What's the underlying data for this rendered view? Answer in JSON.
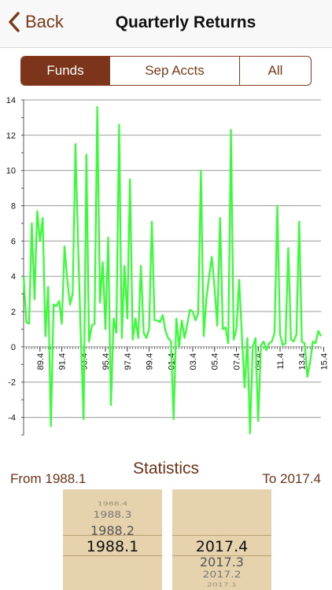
{
  "nav": {
    "back_label": "Back",
    "title": "Quarterly Returns"
  },
  "segments": [
    "Funds",
    "Sep Accts",
    "All"
  ],
  "statistics": {
    "title": "Statistics",
    "from_label": "From 1988.1",
    "to_label": "To 2017.4"
  },
  "picker_from": {
    "items": [
      "1988.4",
      "1988.3",
      "1988.2",
      "1988.1"
    ],
    "selected": "1988.1"
  },
  "picker_to": {
    "items": [
      "2017.4",
      "2017.3",
      "2017.2",
      "2017.1"
    ],
    "selected": "2017.4"
  },
  "chart_data": {
    "type": "line",
    "color": "#33ff33",
    "ylim": [
      -5,
      14
    ],
    "y_ticks": [
      14,
      12,
      10,
      8,
      6,
      4,
      2,
      0,
      -2,
      -4
    ],
    "x_ticks": [
      "89.4",
      "91.4",
      "93.4",
      "95.4",
      "97.4",
      "99.4",
      "01.4",
      "03.4",
      "05.4",
      "07.4",
      "09.4",
      "11.4",
      "13.4",
      "15.4"
    ],
    "values": [
      4.0,
      1.4,
      1.3,
      7.0,
      2.7,
      7.7,
      6.0,
      7.3,
      0.6,
      3.4,
      -4.5,
      2.4,
      2.3,
      2.6,
      1.3,
      5.7,
      3.8,
      2.4,
      3.0,
      11.5,
      5.6,
      0.5,
      -4.1,
      10.9,
      0.3,
      1.2,
      1.3,
      13.6,
      2.5,
      4.8,
      1.0,
      6.2,
      -3.3,
      1.6,
      0.8,
      12.6,
      0.5,
      4.6,
      1.6,
      9.5,
      0.4,
      1.6,
      0.5,
      4.6,
      0.8,
      0.5,
      1.0,
      7.1,
      1.5,
      1.5,
      1.4,
      1.8,
      0.9,
      0.5,
      0.3,
      -4.1,
      1.6,
      0.0,
      1.5,
      0.5,
      1.3,
      2.1,
      2.0,
      1.5,
      1.9,
      10.0,
      0.6,
      2.7,
      4.0,
      5.1,
      3.3,
      1.2,
      7.3,
      1.0,
      1.1,
      0.2,
      12.3,
      0.4,
      1.0,
      3.8,
      0.7,
      -2.3,
      0.5,
      -4.9,
      0.0,
      0.5,
      -4.2,
      0.1,
      0.3,
      -0.2,
      0.2,
      0.3,
      0.8,
      8.0,
      0.7,
      0.1,
      0.2,
      5.6,
      0.4,
      0.3,
      0.7,
      7.1,
      0.3,
      0.2,
      -1.7,
      -0.9,
      0.3,
      0.2,
      0.9,
      0.6
    ]
  }
}
